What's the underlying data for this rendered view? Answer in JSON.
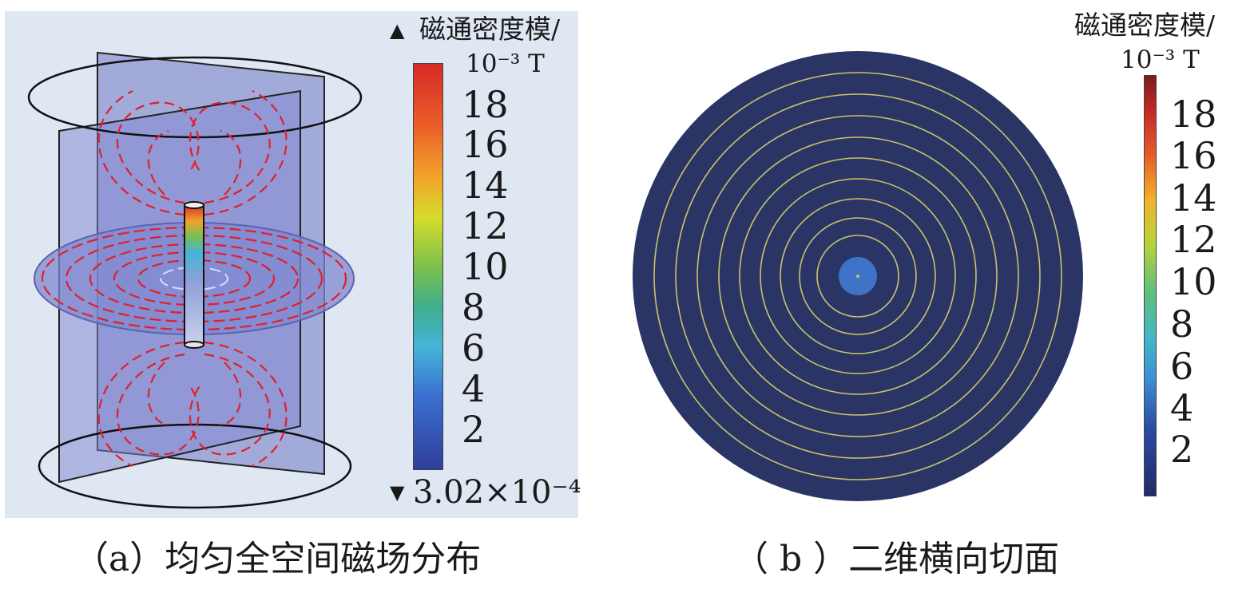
{
  "panel_a": {
    "colorbar": {
      "title": "磁通密度模/",
      "unit": "10⁻³ T",
      "ticks": [
        "18",
        "16",
        "14",
        "12",
        "10",
        "8",
        "6",
        "4",
        "2"
      ],
      "max_marker": "▲",
      "min_marker": "▼",
      "min_value": "3.02×10⁻⁴"
    },
    "caption": "（a）均匀全空间磁场分布"
  },
  "panel_b": {
    "colorbar": {
      "title": "磁通密度模/",
      "unit": "10⁻³ T",
      "ticks": [
        "18",
        "16",
        "14",
        "12",
        "10",
        "8",
        "6",
        "4",
        "2"
      ]
    },
    "caption": "（ b ）二维横向切面"
  },
  "colors": {
    "slice_blue": "#7f86c9",
    "field_line_red": "#e0202a",
    "disk_navy": "#2a3566",
    "contour_yellow": "#c9c36a"
  }
}
